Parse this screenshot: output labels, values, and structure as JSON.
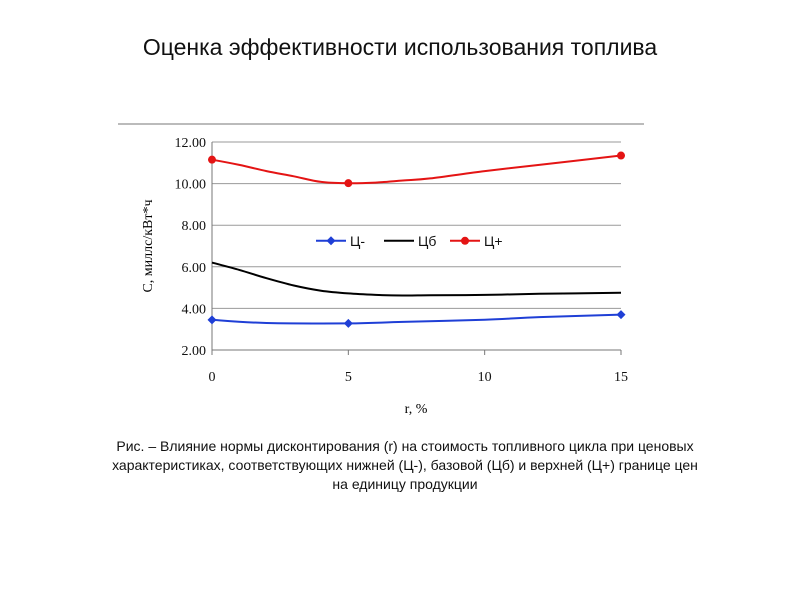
{
  "slide": {
    "title": "Оценка эффективности использования топлива",
    "caption": "Рис. –  Влияние нормы дисконтирования (r) на стоимость топливного цикла при ценовых характеристиках, соответствующих нижней (Ц-), базовой (Цб) и верхней (Ц+) границе цен на единицу продукции"
  },
  "chart_data": {
    "type": "line",
    "xlabel": "r, %",
    "ylabel": "C, миллс/кВт*ч",
    "xlim": [
      0,
      15
    ],
    "ylim": [
      2,
      12
    ],
    "x_ticks": [
      "0",
      "5",
      "10",
      "15"
    ],
    "y_ticks": [
      "2.00",
      "4.00",
      "6.00",
      "8.00",
      "10.00",
      "12.00"
    ],
    "grid": "horizontal",
    "legend_position": "center",
    "series": [
      {
        "name": "Ц-",
        "color": "#1f3fd6",
        "marker": "diamond",
        "x": [
          0,
          2,
          5,
          7,
          10,
          12,
          15
        ],
        "y": [
          3.45,
          3.3,
          3.28,
          3.35,
          3.45,
          3.58,
          3.7
        ],
        "marked_x": [
          0,
          5,
          15
        ]
      },
      {
        "name": "Цб",
        "color": "#000000",
        "marker": "none",
        "x": [
          0,
          1,
          2,
          3,
          4,
          5,
          6,
          7,
          8,
          10,
          12,
          15
        ],
        "y": [
          6.2,
          5.85,
          5.45,
          5.1,
          4.85,
          4.72,
          4.65,
          4.62,
          4.63,
          4.65,
          4.7,
          4.75
        ],
        "marked_x": []
      },
      {
        "name": "Ц+",
        "color": "#e41414",
        "marker": "circle",
        "x": [
          0,
          1,
          2,
          3,
          4,
          5,
          6,
          7,
          8,
          10,
          12,
          15
        ],
        "y": [
          11.15,
          10.9,
          10.6,
          10.35,
          10.08,
          10.02,
          10.05,
          10.15,
          10.25,
          10.6,
          10.9,
          11.35
        ],
        "marked_x": [
          0,
          5,
          15
        ]
      }
    ]
  }
}
